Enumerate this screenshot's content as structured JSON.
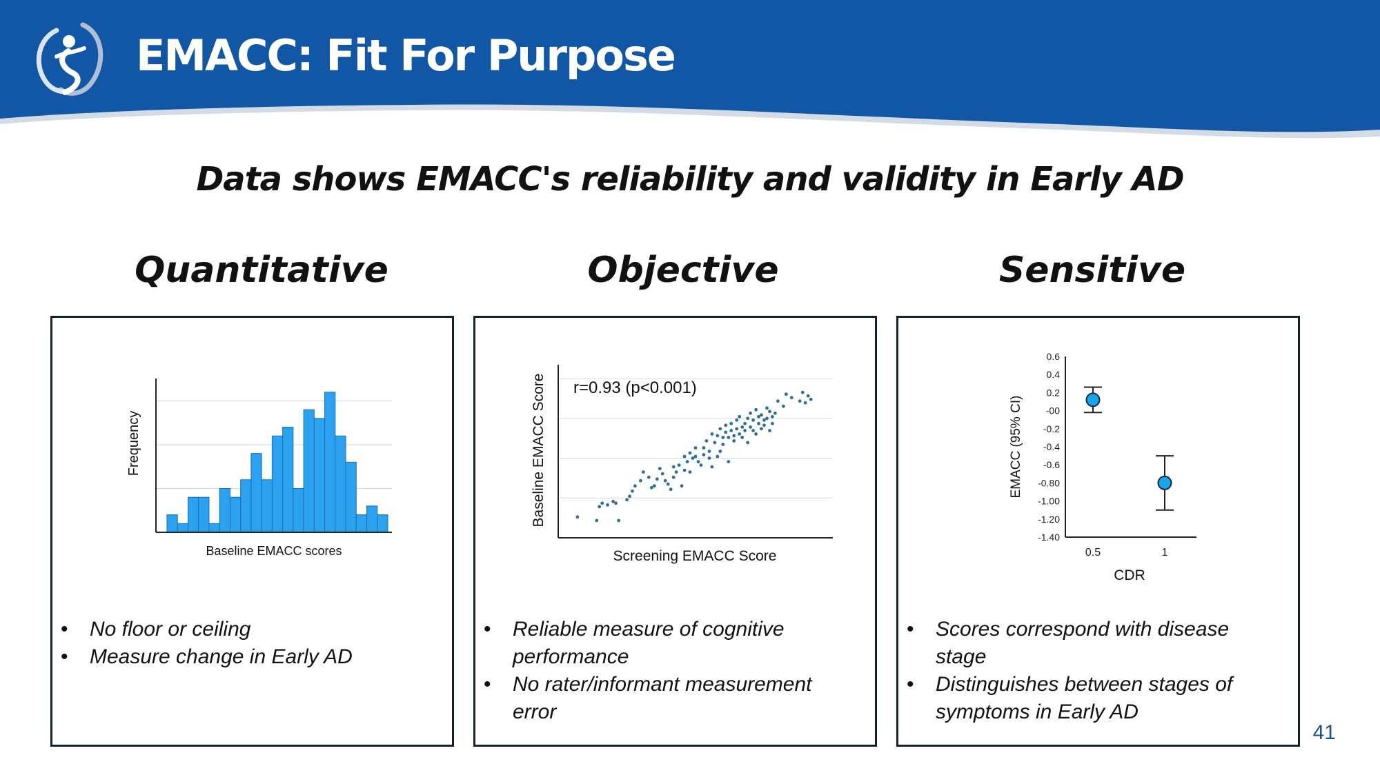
{
  "slide": {
    "title": "EMACC: Fit For Purpose",
    "subtitle": "Data shows EMACC's reliability and validity in Early AD",
    "page_number": "41",
    "colors": {
      "banner": "#1157a6",
      "bar": "#2aa2ef",
      "point": "#2d6f97",
      "marker": "#17a5e6"
    }
  },
  "columns": [
    {
      "heading": "Quantitative",
      "bullets": [
        "No floor or ceiling",
        "Measure change in Early AD"
      ]
    },
    {
      "heading": "Objective",
      "bullets": [
        "Reliable measure of cognitive performance",
        "No rater/informant measurement error"
      ]
    },
    {
      "heading": "Sensitive",
      "bullets": [
        "Scores correspond with disease stage",
        "Distinguishes between stages of symptoms in Early AD"
      ]
    }
  ],
  "chart_data": [
    {
      "type": "bar",
      "subtype": "histogram",
      "xlabel": "Baseline EMACC scores",
      "ylabel": "Frequency",
      "grid": true,
      "ylim": [
        0,
        17
      ],
      "values": [
        2,
        1,
        4,
        4,
        1,
        5,
        4,
        6,
        9,
        6,
        11,
        12,
        5,
        14,
        13,
        16,
        11,
        8,
        2,
        3,
        2
      ]
    },
    {
      "type": "scatter",
      "xlabel": "Screening EMACC Score",
      "ylabel": "Baseline EMACC Score",
      "annotation": "r=0.93 (p<0.001)",
      "grid": true,
      "xlim": [
        0,
        100
      ],
      "ylim": [
        0,
        100
      ],
      "points": [
        [
          7,
          12
        ],
        [
          14,
          10
        ],
        [
          15,
          18
        ],
        [
          16,
          20
        ],
        [
          18,
          19
        ],
        [
          20,
          21
        ],
        [
          21,
          20
        ],
        [
          22,
          10
        ],
        [
          25,
          22
        ],
        [
          26,
          24
        ],
        [
          27,
          27
        ],
        [
          28,
          30
        ],
        [
          30,
          33
        ],
        [
          31,
          38
        ],
        [
          33,
          35
        ],
        [
          34,
          29
        ],
        [
          35,
          30
        ],
        [
          36,
          34
        ],
        [
          37,
          40
        ],
        [
          38,
          37
        ],
        [
          39,
          33
        ],
        [
          40,
          31
        ],
        [
          41,
          28
        ],
        [
          42,
          35
        ],
        [
          42,
          41
        ],
        [
          43,
          38
        ],
        [
          44,
          42
        ],
        [
          45,
          30
        ],
        [
          46,
          39
        ],
        [
          46,
          47
        ],
        [
          47,
          44
        ],
        [
          48,
          38
        ],
        [
          48,
          49
        ],
        [
          49,
          46
        ],
        [
          50,
          47
        ],
        [
          50,
          52
        ],
        [
          51,
          44
        ],
        [
          52,
          42
        ],
        [
          53,
          48
        ],
        [
          53,
          52
        ],
        [
          54,
          56
        ],
        [
          55,
          50
        ],
        [
          55,
          46
        ],
        [
          56,
          41
        ],
        [
          56,
          60
        ],
        [
          57,
          55
        ],
        [
          58,
          59
        ],
        [
          58,
          47
        ],
        [
          59,
          50
        ],
        [
          59,
          63
        ],
        [
          60,
          54
        ],
        [
          60,
          58
        ],
        [
          61,
          61
        ],
        [
          61,
          65
        ],
        [
          62,
          58
        ],
        [
          62,
          44
        ],
        [
          63,
          62
        ],
        [
          63,
          66
        ],
        [
          64,
          59
        ],
        [
          64,
          56
        ],
        [
          65,
          63
        ],
        [
          65,
          68
        ],
        [
          66,
          60
        ],
        [
          66,
          70
        ],
        [
          67,
          58
        ],
        [
          67,
          64
        ],
        [
          68,
          66
        ],
        [
          68,
          62
        ],
        [
          69,
          55
        ],
        [
          69,
          69
        ],
        [
          70,
          64
        ],
        [
          70,
          72
        ],
        [
          71,
          62
        ],
        [
          71,
          68
        ],
        [
          72,
          74
        ],
        [
          72,
          60
        ],
        [
          73,
          66
        ],
        [
          73,
          70
        ],
        [
          74,
          63
        ],
        [
          74,
          71
        ],
        [
          75,
          68
        ],
        [
          75,
          65
        ],
        [
          76,
          69
        ],
        [
          76,
          75
        ],
        [
          77,
          73
        ],
        [
          77,
          62
        ],
        [
          78,
          70
        ],
        [
          78,
          66
        ],
        [
          79,
          72
        ],
        [
          80,
          79
        ],
        [
          82,
          76
        ],
        [
          83,
          83
        ],
        [
          85,
          81
        ],
        [
          88,
          79
        ],
        [
          89,
          84
        ],
        [
          90,
          78
        ],
        [
          91,
          82
        ],
        [
          92,
          80
        ]
      ]
    },
    {
      "type": "scatter",
      "subtype": "error-bar",
      "xlabel": "CDR",
      "ylabel": "EMACC (95% CI)",
      "categories": [
        "0.5",
        "1"
      ],
      "y_tick_labels": [
        "0.6",
        "0.4",
        "0.2",
        "-00",
        "-0.2",
        "-0.4",
        "-0.6",
        "-0.80",
        "-1.00",
        "-1.20",
        "-1.40"
      ],
      "ylim": [
        -1.4,
        0.6
      ],
      "series": [
        {
          "name": "CDR 0.5",
          "x": "0.5",
          "mean": 0.12,
          "ci_low": -0.02,
          "ci_high": 0.26
        },
        {
          "name": "CDR 1",
          "x": "1",
          "mean": -0.8,
          "ci_low": -1.1,
          "ci_high": -0.5
        }
      ]
    }
  ]
}
